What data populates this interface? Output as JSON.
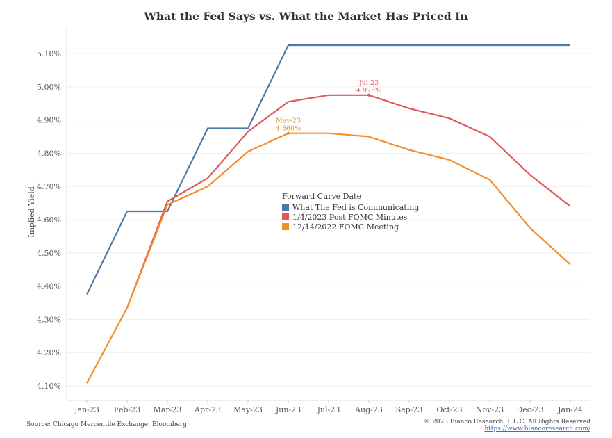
{
  "chart_data": {
    "type": "line",
    "title": "What the Fed Says vs. What the Market Has Priced In",
    "ylabel": "Implied Yield",
    "xlabel": "",
    "categories": [
      "Jan-23",
      "Feb-23",
      "Mar-23",
      "Apr-23",
      "May-23",
      "Jun-23",
      "Jul-23",
      "Aug-23",
      "Sep-23",
      "Oct-23",
      "Nov-23",
      "Dec-23",
      "Jan-24"
    ],
    "ylim": [
      4.075,
      5.15
    ],
    "yticks": [
      4.1,
      4.2,
      4.3,
      4.4,
      4.5,
      4.6,
      4.7,
      4.8,
      4.9,
      5.0,
      5.1
    ],
    "ytick_labels": [
      "4.10%",
      "4.20%",
      "4.30%",
      "4.40%",
      "4.50%",
      "4.60%",
      "4.70%",
      "4.80%",
      "4.90%",
      "5.00%",
      "5.10%"
    ],
    "grid": true,
    "legend_title": "Forward Curve Date",
    "legend_position": "center",
    "series": [
      {
        "name": "What The Fed is Communicating",
        "color": "#4e79a7",
        "values": [
          4.375,
          4.625,
          4.625,
          4.875,
          4.875,
          5.125,
          5.125,
          5.125,
          5.125,
          5.125,
          5.125,
          5.125,
          5.125
        ]
      },
      {
        "name": "1/4/2023 Post FOMC Minutes",
        "color": "#e15759",
        "values": [
          null,
          4.335,
          4.655,
          4.725,
          4.865,
          4.955,
          4.975,
          4.975,
          4.935,
          4.905,
          4.85,
          4.735,
          4.64
        ]
      },
      {
        "name": "12/14/2022 FOMC Meeting",
        "color": "#f28e2b",
        "values": [
          4.108,
          4.335,
          4.645,
          4.7,
          4.805,
          4.86,
          4.86,
          4.85,
          4.81,
          4.78,
          4.72,
          4.575,
          4.465
        ]
      }
    ],
    "annotations": [
      {
        "series": 1,
        "index": 7,
        "label": "Jul-23",
        "value": "4.975%"
      },
      {
        "series": 2,
        "index": 5,
        "label": "May-23",
        "value": "4.860%"
      }
    ]
  },
  "footer": {
    "source": "Source: Chicago Mercentile Exchange, Bloomberg",
    "copyright": "© 2023 Bianco Research, L.L.C. All Rights Reserved",
    "link": "https://www.biancoresearch.com/"
  }
}
